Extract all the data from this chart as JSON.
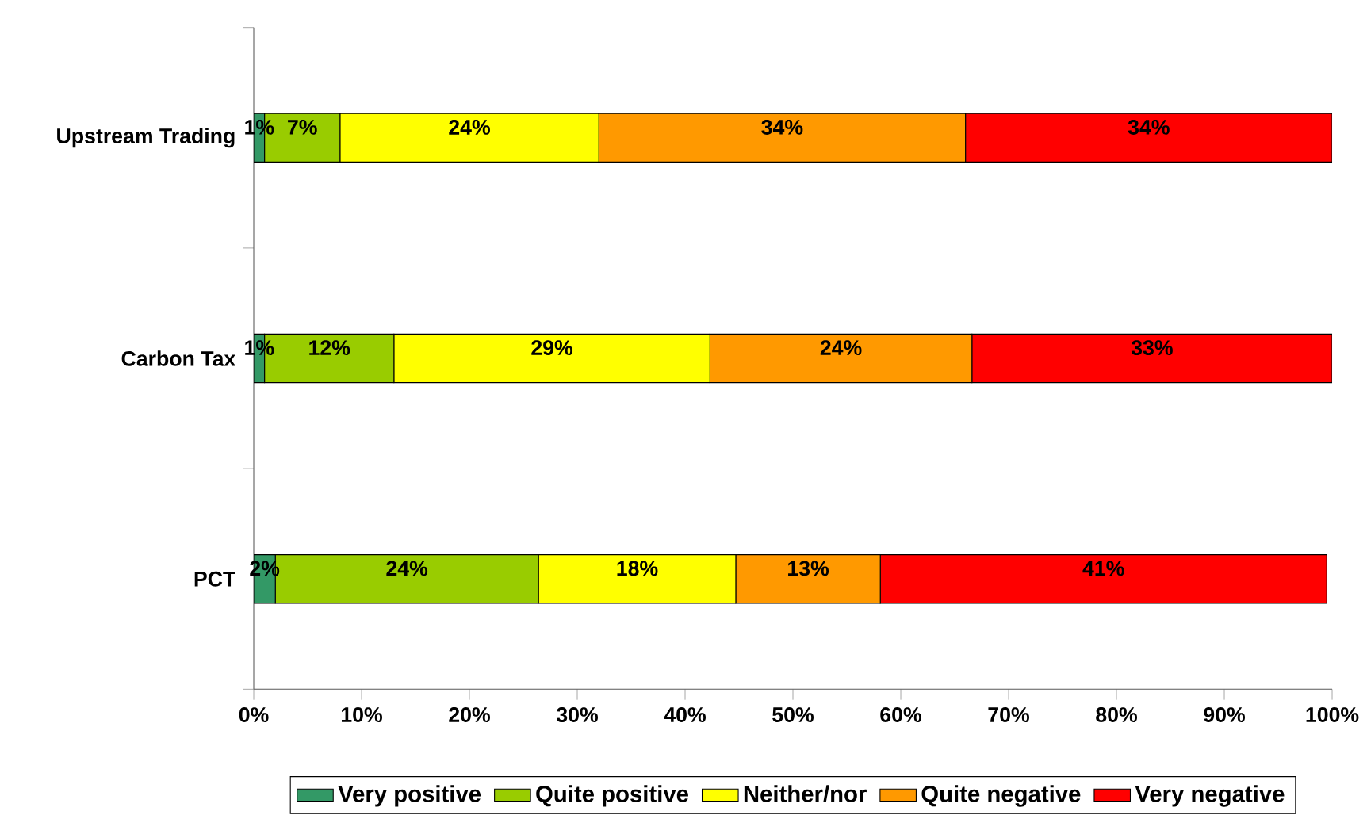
{
  "chart_data": {
    "type": "bar",
    "orientation": "horizontal",
    "stacked": true,
    "categories": [
      "Upstream Trading",
      "Carbon Tax",
      "PCT"
    ],
    "series": [
      {
        "name": "Very positive",
        "color": "#339966",
        "values": [
          1,
          1,
          2
        ],
        "value_labels": [
          "1%",
          "1%",
          "2%"
        ]
      },
      {
        "name": "Quite positive",
        "color": "#99cc00",
        "values": [
          7,
          12,
          24.4
        ],
        "value_labels": [
          "7%",
          "12%",
          "24%"
        ]
      },
      {
        "name": "Neither/nor",
        "color": "#ffff00",
        "values": [
          24,
          29.3,
          18.3
        ],
        "value_labels": [
          "24%",
          "29%",
          "18%"
        ]
      },
      {
        "name": "Quite negative",
        "color": "#ff9900",
        "values": [
          34,
          24.3,
          13.4
        ],
        "value_labels": [
          "34%",
          "24%",
          "13%"
        ]
      },
      {
        "name": "Very negative",
        "color": "#ff0000",
        "values": [
          34,
          33.4,
          41.4
        ],
        "value_labels": [
          "34%",
          "33%",
          "41%"
        ]
      }
    ],
    "xlim": [
      0,
      100
    ],
    "xticks": [
      {
        "value": 0,
        "label": "0%"
      },
      {
        "value": 10,
        "label": "10%"
      },
      {
        "value": 20,
        "label": "20%"
      },
      {
        "value": 30,
        "label": "30%"
      },
      {
        "value": 40,
        "label": "40%"
      },
      {
        "value": 50,
        "label": "50%"
      },
      {
        "value": 60,
        "label": "60%"
      },
      {
        "value": 70,
        "label": "70%"
      },
      {
        "value": 80,
        "label": "80%"
      },
      {
        "value": 90,
        "label": "90%"
      },
      {
        "value": 100,
        "label": "100%"
      }
    ],
    "grid": false,
    "legend": "bottom"
  }
}
